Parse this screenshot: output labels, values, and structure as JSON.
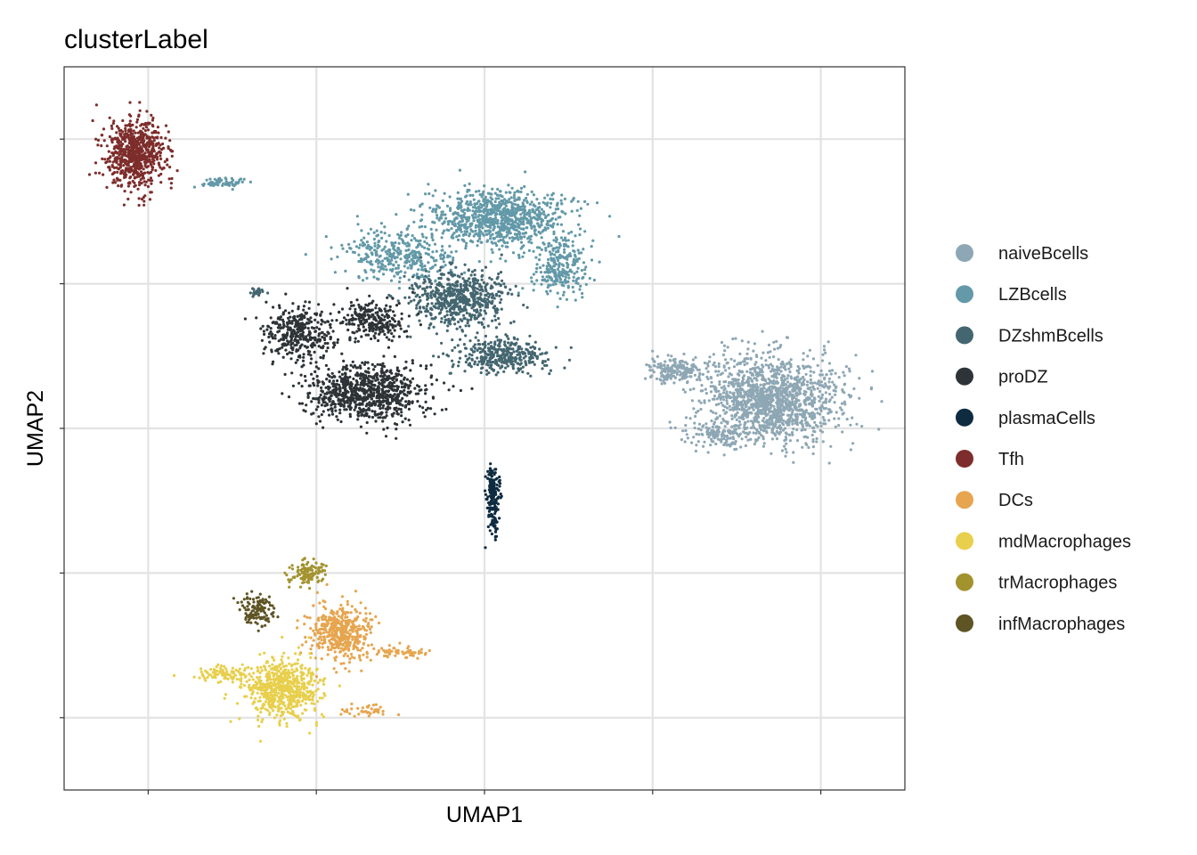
{
  "chart_data": {
    "type": "scatter",
    "title": "clusterLabel",
    "xlabel": "UMAP1",
    "ylabel": "UMAP2",
    "xlim": [
      -1.0,
      9.0
    ],
    "ylim": [
      -1.0,
      9.0
    ],
    "grid": true,
    "x_tick_labels_visible": false,
    "y_tick_labels_visible": false,
    "legend_position": "right",
    "series": [
      {
        "name": "naiveBcells",
        "color": "#8ea7b4",
        "clusters": [
          {
            "center": [
              7.4,
              4.4
            ],
            "spread": [
              0.75,
              0.55
            ],
            "n": 1400
          },
          {
            "center": [
              6.3,
              4.8
            ],
            "spread": [
              0.35,
              0.15
            ],
            "n": 180
          },
          {
            "center": [
              6.8,
              3.9
            ],
            "spread": [
              0.4,
              0.15
            ],
            "n": 120
          }
        ]
      },
      {
        "name": "LZBcells",
        "color": "#6399a8",
        "clusters": [
          {
            "center": [
              4.2,
              6.9
            ],
            "spread": [
              0.75,
              0.35
            ],
            "n": 900
          },
          {
            "center": [
              3.0,
              6.4
            ],
            "spread": [
              0.6,
              0.3
            ],
            "n": 350
          },
          {
            "center": [
              4.9,
              6.2
            ],
            "spread": [
              0.3,
              0.35
            ],
            "n": 250
          },
          {
            "center": [
              0.9,
              7.4
            ],
            "spread": [
              0.25,
              0.08
            ],
            "n": 60
          }
        ]
      },
      {
        "name": "DZshmBcells",
        "color": "#446670",
        "clusters": [
          {
            "center": [
              3.7,
              5.8
            ],
            "spread": [
              0.55,
              0.35
            ],
            "n": 600
          },
          {
            "center": [
              4.2,
              5.0
            ],
            "spread": [
              0.5,
              0.22
            ],
            "n": 350
          },
          {
            "center": [
              1.3,
              5.9
            ],
            "spread": [
              0.08,
              0.06
            ],
            "n": 25
          }
        ]
      },
      {
        "name": "proDZ",
        "color": "#2d3336",
        "clusters": [
          {
            "center": [
              2.6,
              4.5
            ],
            "spread": [
              0.6,
              0.35
            ],
            "n": 850
          },
          {
            "center": [
              1.8,
              5.3
            ],
            "spread": [
              0.4,
              0.35
            ],
            "n": 350
          },
          {
            "center": [
              2.7,
              5.5
            ],
            "spread": [
              0.35,
              0.25
            ],
            "n": 250
          }
        ]
      },
      {
        "name": "plasmaCells",
        "color": "#0e2b40",
        "clusters": [
          {
            "center": [
              4.1,
              3.0
            ],
            "spread": [
              0.07,
              0.45
            ],
            "n": 180
          }
        ]
      },
      {
        "name": "Tfh",
        "color": "#7d2d2b",
        "clusters": [
          {
            "center": [
              -0.15,
              7.8
            ],
            "spread": [
              0.3,
              0.45
            ],
            "n": 700
          }
        ]
      },
      {
        "name": "DCs",
        "color": "#e6a54e",
        "clusters": [
          {
            "center": [
              2.3,
              1.2
            ],
            "spread": [
              0.35,
              0.35
            ],
            "n": 450
          },
          {
            "center": [
              3.0,
              0.9
            ],
            "spread": [
              0.3,
              0.08
            ],
            "n": 60
          },
          {
            "center": [
              2.6,
              0.1
            ],
            "spread": [
              0.3,
              0.07
            ],
            "n": 40
          }
        ]
      },
      {
        "name": "mdMacrophages",
        "color": "#e8cf4c",
        "clusters": [
          {
            "center": [
              1.6,
              0.4
            ],
            "spread": [
              0.4,
              0.38
            ],
            "n": 650
          },
          {
            "center": [
              0.9,
              0.6
            ],
            "spread": [
              0.3,
              0.08
            ],
            "n": 90
          }
        ]
      },
      {
        "name": "trMacrophages",
        "color": "#a3932f",
        "clusters": [
          {
            "center": [
              1.9,
              2.0
            ],
            "spread": [
              0.2,
              0.15
            ],
            "n": 110
          }
        ]
      },
      {
        "name": "infMacrophages",
        "color": "#5e5424",
        "clusters": [
          {
            "center": [
              1.3,
              1.5
            ],
            "spread": [
              0.18,
              0.2
            ],
            "n": 120
          }
        ]
      }
    ]
  }
}
